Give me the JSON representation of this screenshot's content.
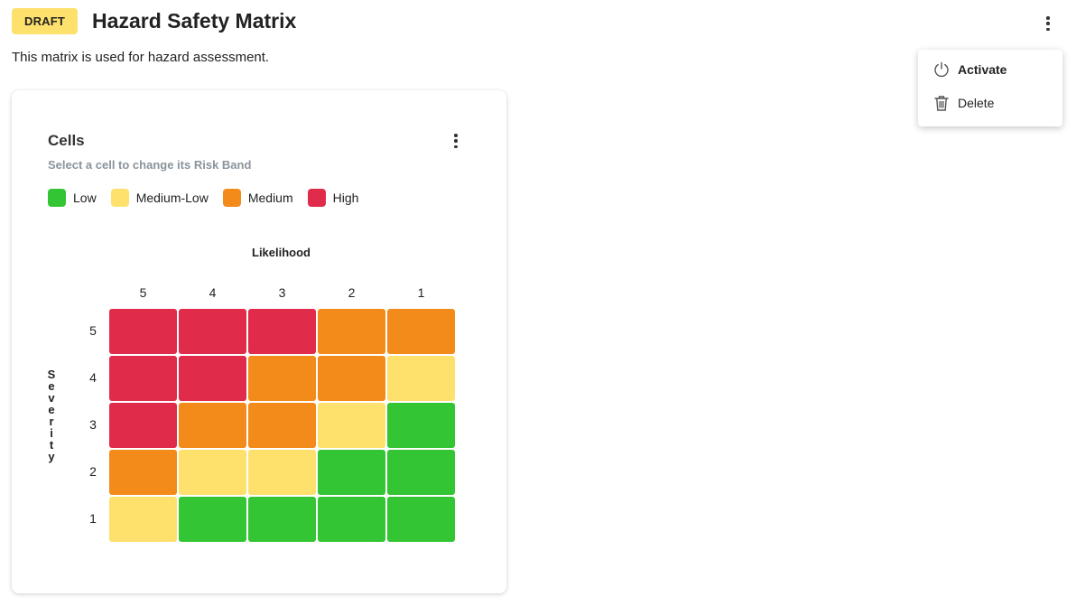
{
  "header": {
    "status": "DRAFT",
    "title": "Hazard Safety Matrix",
    "description": "This matrix is used for hazard assessment."
  },
  "menu": {
    "items": [
      {
        "label": "Activate",
        "icon": "power-icon"
      },
      {
        "label": "Delete",
        "icon": "trash-icon"
      }
    ]
  },
  "card": {
    "title": "Cells",
    "hint": "Select a cell to change its Risk Band"
  },
  "legend": [
    {
      "label": "Low",
      "color": "#34c534"
    },
    {
      "label": "Medium-Low",
      "color": "#fde16c"
    },
    {
      "label": "Medium",
      "color": "#f28b1a"
    },
    {
      "label": "High",
      "color": "#e02b4a"
    }
  ],
  "matrix": {
    "x_axis_label": "Likelihood",
    "y_axis_label": "Severity",
    "columns": [
      "5",
      "4",
      "3",
      "2",
      "1"
    ],
    "rows": [
      "5",
      "4",
      "3",
      "2",
      "1"
    ],
    "cells": [
      [
        "High",
        "High",
        "High",
        "Medium",
        "Medium"
      ],
      [
        "High",
        "High",
        "Medium",
        "Medium",
        "Medium-Low"
      ],
      [
        "High",
        "Medium",
        "Medium",
        "Medium-Low",
        "Low"
      ],
      [
        "Medium",
        "Medium-Low",
        "Medium-Low",
        "Low",
        "Low"
      ],
      [
        "Medium-Low",
        "Low",
        "Low",
        "Low",
        "Low"
      ]
    ]
  }
}
